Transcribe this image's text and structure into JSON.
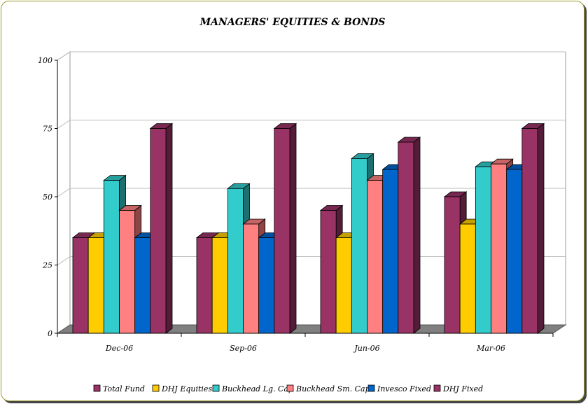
{
  "chart_data": {
    "type": "bar",
    "title": "MANAGERS' EQUITIES & BONDS",
    "xlabel": "",
    "ylabel": "",
    "categories": [
      "Dec-06",
      "Sep-06",
      "Jun-06",
      "Mar-06"
    ],
    "ylim": [
      0,
      100
    ],
    "yticks": [
      0,
      25,
      50,
      75,
      100
    ],
    "grid": true,
    "legend_position": "bottom",
    "style": "3d",
    "series": [
      {
        "name": "Total Fund",
        "color": "#993366",
        "values": [
          35,
          35,
          45,
          50
        ]
      },
      {
        "name": "DHJ Equities",
        "color": "#ffcc00",
        "values": [
          35,
          35,
          35,
          40
        ]
      },
      {
        "name": "Buckhead Lg. Cap",
        "color": "#33cccc",
        "values": [
          56,
          53,
          64,
          61
        ]
      },
      {
        "name": "Buckhead Sm. Cap",
        "color": "#ff8080",
        "values": [
          45,
          40,
          56,
          62
        ]
      },
      {
        "name": "Invesco Fixed",
        "color": "#0066cc",
        "values": [
          35,
          35,
          60,
          60
        ]
      },
      {
        "name": "DHJ Fixed",
        "color": "#993366",
        "values": [
          75,
          75,
          70,
          75
        ]
      }
    ]
  }
}
